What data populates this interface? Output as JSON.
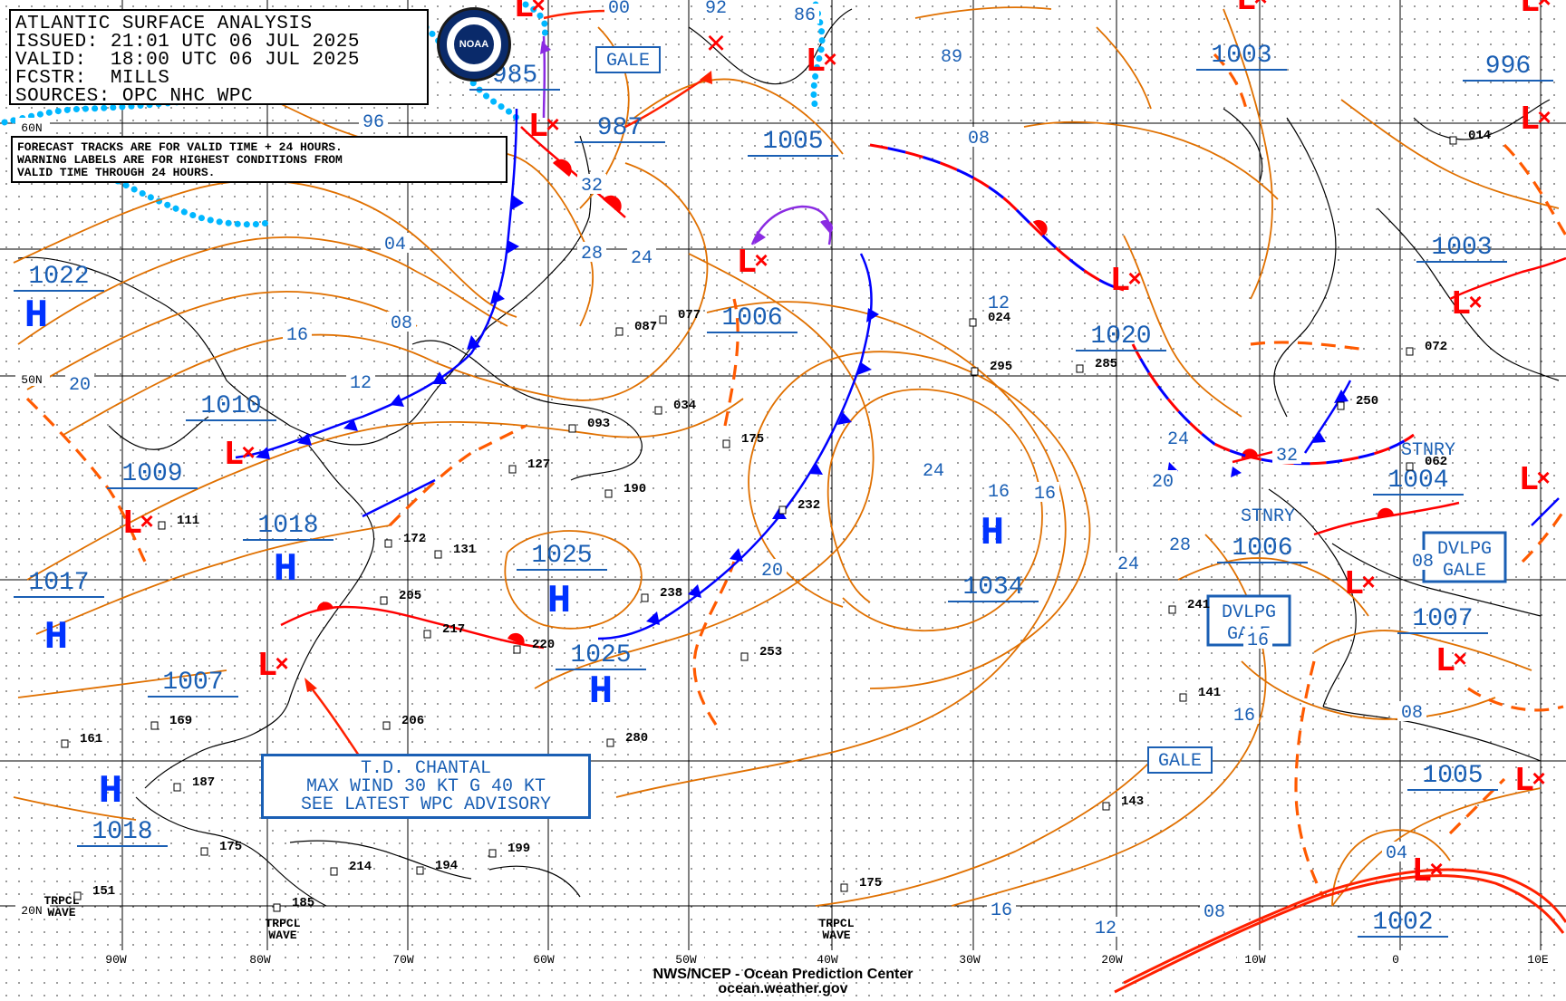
{
  "header": {
    "title": "ATLANTIC SURFACE ANALYSIS",
    "issued": "ISSUED: 21:01 UTC 06 JUL 2025",
    "valid": "VALID:  18:00 UTC 06 JUL 2025",
    "forecaster": "FCSTR:  MILLS",
    "sources": "SOURCES: OPC NHC WPC",
    "logo_text": "NOAA"
  },
  "note": {
    "line1": "FORECAST TRACKS ARE FOR VALID TIME + 24 HOURS.",
    "line2": "WARNING LABELS ARE FOR HIGHEST CONDITIONS FROM",
    "line3": "VALID TIME THROUGH 24 HOURS."
  },
  "footer": {
    "line1": "NWS/NCEP - Ocean Prediction Center",
    "line2": "ocean.weather.gov"
  },
  "storm_box": {
    "line1": "T.D. CHANTAL",
    "line2": "MAX WIND 30 KT G 40 KT",
    "line3": "SEE LATEST WPC ADVISORY"
  },
  "colors": {
    "isobar": "#e07000",
    "label": "#1a5fb4",
    "cold_front": "#0000ff",
    "warm_front": "#ff0000",
    "occluded": "#8a2be2",
    "trough": "#ff5a00",
    "grid": "#000000",
    "coast": "#000000"
  },
  "lat_labels": [
    "60N",
    "50N",
    "20N"
  ],
  "lon_labels": [
    "90W",
    "80W",
    "70W",
    "60W",
    "50W",
    "40W",
    "30W",
    "20W",
    "10W",
    "0",
    "10E"
  ],
  "highs": [
    {
      "letter": "H",
      "pressure": "1022"
    },
    {
      "letter": "H",
      "pressure": "1018"
    },
    {
      "letter": "H",
      "pressure": "1017"
    },
    {
      "letter": "H",
      "pressure": "1025"
    },
    {
      "letter": "H",
      "pressure": "1025"
    },
    {
      "letter": "H",
      "pressure": "1018"
    },
    {
      "letter": "H",
      "pressure": "1034"
    }
  ],
  "lows": [
    {
      "pressure": "985"
    },
    {
      "pressure": "987"
    },
    {
      "pressure": "1005"
    },
    {
      "pressure": "1006"
    },
    {
      "pressure": "1010"
    },
    {
      "pressure": "1009"
    },
    {
      "pressure": "1007"
    },
    {
      "pressure": "1020"
    },
    {
      "pressure": "1003"
    },
    {
      "pressure": "1003"
    },
    {
      "pressure": "996"
    },
    {
      "pressure": "1004"
    },
    {
      "pressure": "1006"
    },
    {
      "pressure": "1007"
    },
    {
      "pressure": "1005"
    },
    {
      "pressure": "1002"
    }
  ],
  "warnings": [
    "GALE",
    "GALE",
    "DVLPG GALE",
    "DVLPG GALE",
    "STNRY",
    "STNRY"
  ],
  "isobar_labels": [
    "96",
    "04",
    "08",
    "12",
    "16",
    "20",
    "24",
    "28",
    "32",
    "00",
    "92",
    "86",
    "89",
    "08",
    "12",
    "16",
    "24",
    "16",
    "20",
    "24",
    "28",
    "32",
    "24",
    "16",
    "08",
    "04",
    "08",
    "16",
    "20",
    "08",
    "12",
    "16"
  ],
  "tropical_waves": [
    "TRPCL WAVE",
    "TRPCL WAVE",
    "TRPCL WAVE"
  ],
  "station_values": [
    "087",
    "077",
    "093",
    "034",
    "175",
    "232",
    "238",
    "253",
    "220",
    "217",
    "205",
    "172",
    "131",
    "206",
    "169",
    "161",
    "187",
    "175",
    "214",
    "194",
    "199",
    "185",
    "151",
    "280",
    "190",
    "127",
    "111",
    "024",
    "295",
    "285",
    "250",
    "072",
    "062",
    "014",
    "241",
    "141",
    "143",
    "175"
  ]
}
